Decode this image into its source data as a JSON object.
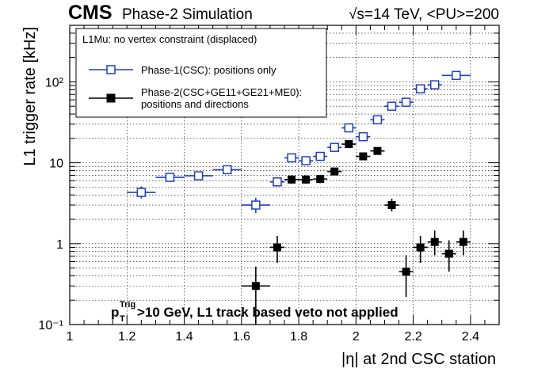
{
  "header": {
    "experiment": "CMS",
    "status": "Phase-2 Simulation",
    "energy": "√s=14 TeV, <PU>=200"
  },
  "annotation": {
    "pt": "p",
    "pt_sub": "T",
    "pt_sup": "Trig",
    "text": ">10 GeV, L1 track based veto not applied"
  },
  "legend": {
    "title": "L1Mu: no vertex constraint (displaced)",
    "entries": [
      {
        "line1": "Phase-1(CSC): positions only",
        "line2": ""
      },
      {
        "line1": "Phase-2(CSC+GE11+GE21+ME0):",
        "line2": "positions and directions"
      }
    ]
  },
  "colors": {
    "phase1": "#1f3fbf",
    "phase2": "#000000"
  },
  "chart_data": {
    "type": "scatter",
    "xlabel": "|η| at 2nd CSC station",
    "ylabel": "L1 trigger rate [kHz]",
    "xlim": [
      1.0,
      2.5
    ],
    "ylim": [
      0.1,
      500
    ],
    "yscale": "log",
    "x_ticks": [
      "1",
      "1.2",
      "1.4",
      "1.6",
      "1.8",
      "2",
      "2.2",
      "2.4"
    ],
    "y_ticks": [
      "10⁻¹",
      "1",
      "10",
      "10²"
    ],
    "grid": true,
    "legend_position": "top-left",
    "series": [
      {
        "name": "Phase-1(CSC): positions only",
        "marker": "open-square",
        "points": [
          {
            "x": 1.25,
            "xerr": 0.05,
            "y": 4.3,
            "ylo": 3.6,
            "yhi": 5.1
          },
          {
            "x": 1.35,
            "xerr": 0.05,
            "y": 6.6,
            "ylo": 6.0,
            "yhi": 7.3
          },
          {
            "x": 1.45,
            "xerr": 0.05,
            "y": 6.9,
            "ylo": 6.3,
            "yhi": 7.6
          },
          {
            "x": 1.55,
            "xerr": 0.05,
            "y": 8.2,
            "ylo": 7.5,
            "yhi": 9.0
          },
          {
            "x": 1.65,
            "xerr": 0.05,
            "y": 3.0,
            "ylo": 2.4,
            "yhi": 3.7
          },
          {
            "x": 1.725,
            "xerr": 0.025,
            "y": 5.8,
            "ylo": 5.2,
            "yhi": 6.5
          },
          {
            "x": 1.775,
            "xerr": 0.025,
            "y": 11.5,
            "ylo": 10.5,
            "yhi": 12.6
          },
          {
            "x": 1.825,
            "xerr": 0.025,
            "y": 10.6,
            "ylo": 9.7,
            "yhi": 11.6
          },
          {
            "x": 1.875,
            "xerr": 0.025,
            "y": 12.0,
            "ylo": 11.0,
            "yhi": 13.1
          },
          {
            "x": 1.925,
            "xerr": 0.025,
            "y": 15.5,
            "ylo": 14.3,
            "yhi": 16.8
          },
          {
            "x": 1.975,
            "xerr": 0.025,
            "y": 27.0,
            "ylo": 25.5,
            "yhi": 28.5
          },
          {
            "x": 2.025,
            "xerr": 0.025,
            "y": 21.0,
            "ylo": 19.8,
            "yhi": 22.3
          },
          {
            "x": 2.075,
            "xerr": 0.025,
            "y": 34.0,
            "ylo": 32.3,
            "yhi": 35.8
          },
          {
            "x": 2.125,
            "xerr": 0.025,
            "y": 50.0,
            "ylo": 47.8,
            "yhi": 52.3
          },
          {
            "x": 2.175,
            "xerr": 0.025,
            "y": 56.0,
            "ylo": 53.6,
            "yhi": 58.4
          },
          {
            "x": 2.225,
            "xerr": 0.025,
            "y": 82.0,
            "ylo": 79.0,
            "yhi": 85.0
          },
          {
            "x": 2.275,
            "xerr": 0.025,
            "y": 92.0,
            "ylo": 88.8,
            "yhi": 95.2
          },
          {
            "x": 2.35,
            "xerr": 0.05,
            "y": 120.0,
            "ylo": 116.3,
            "yhi": 123.7
          }
        ]
      },
      {
        "name": "Phase-2(CSC+GE11+GE21+ME0): positions and directions",
        "marker": "filled-square",
        "points": [
          {
            "x": 1.65,
            "xerr": 0.05,
            "y": 0.3,
            "ylo": 0.1,
            "yhi": 0.52
          },
          {
            "x": 1.725,
            "xerr": 0.025,
            "y": 0.9,
            "ylo": 0.58,
            "yhi": 1.25
          },
          {
            "x": 1.775,
            "xerr": 0.025,
            "y": 6.2,
            "ylo": 5.5,
            "yhi": 7.0
          },
          {
            "x": 1.825,
            "xerr": 0.025,
            "y": 6.2,
            "ylo": 5.5,
            "yhi": 7.0
          },
          {
            "x": 1.875,
            "xerr": 0.025,
            "y": 6.3,
            "ylo": 5.6,
            "yhi": 7.1
          },
          {
            "x": 1.925,
            "xerr": 0.025,
            "y": 7.8,
            "ylo": 7.0,
            "yhi": 8.7
          },
          {
            "x": 1.975,
            "xerr": 0.025,
            "y": 17.0,
            "ylo": 15.8,
            "yhi": 18.3
          },
          {
            "x": 2.025,
            "xerr": 0.025,
            "y": 12.0,
            "ylo": 11.0,
            "yhi": 13.1
          },
          {
            "x": 2.075,
            "xerr": 0.025,
            "y": 14.0,
            "ylo": 12.9,
            "yhi": 15.2
          },
          {
            "x": 2.125,
            "xerr": 0.025,
            "y": 3.0,
            "ylo": 2.5,
            "yhi": 3.6
          },
          {
            "x": 2.175,
            "xerr": 0.025,
            "y": 0.45,
            "ylo": 0.22,
            "yhi": 0.72
          },
          {
            "x": 2.225,
            "xerr": 0.025,
            "y": 0.9,
            "ylo": 0.58,
            "yhi": 1.25
          },
          {
            "x": 2.275,
            "xerr": 0.025,
            "y": 1.05,
            "ylo": 0.72,
            "yhi": 1.45
          },
          {
            "x": 2.325,
            "xerr": 0.025,
            "y": 0.75,
            "ylo": 0.45,
            "yhi": 1.1
          },
          {
            "x": 2.375,
            "xerr": 0.025,
            "y": 1.05,
            "ylo": 0.72,
            "yhi": 1.45
          }
        ]
      }
    ]
  }
}
